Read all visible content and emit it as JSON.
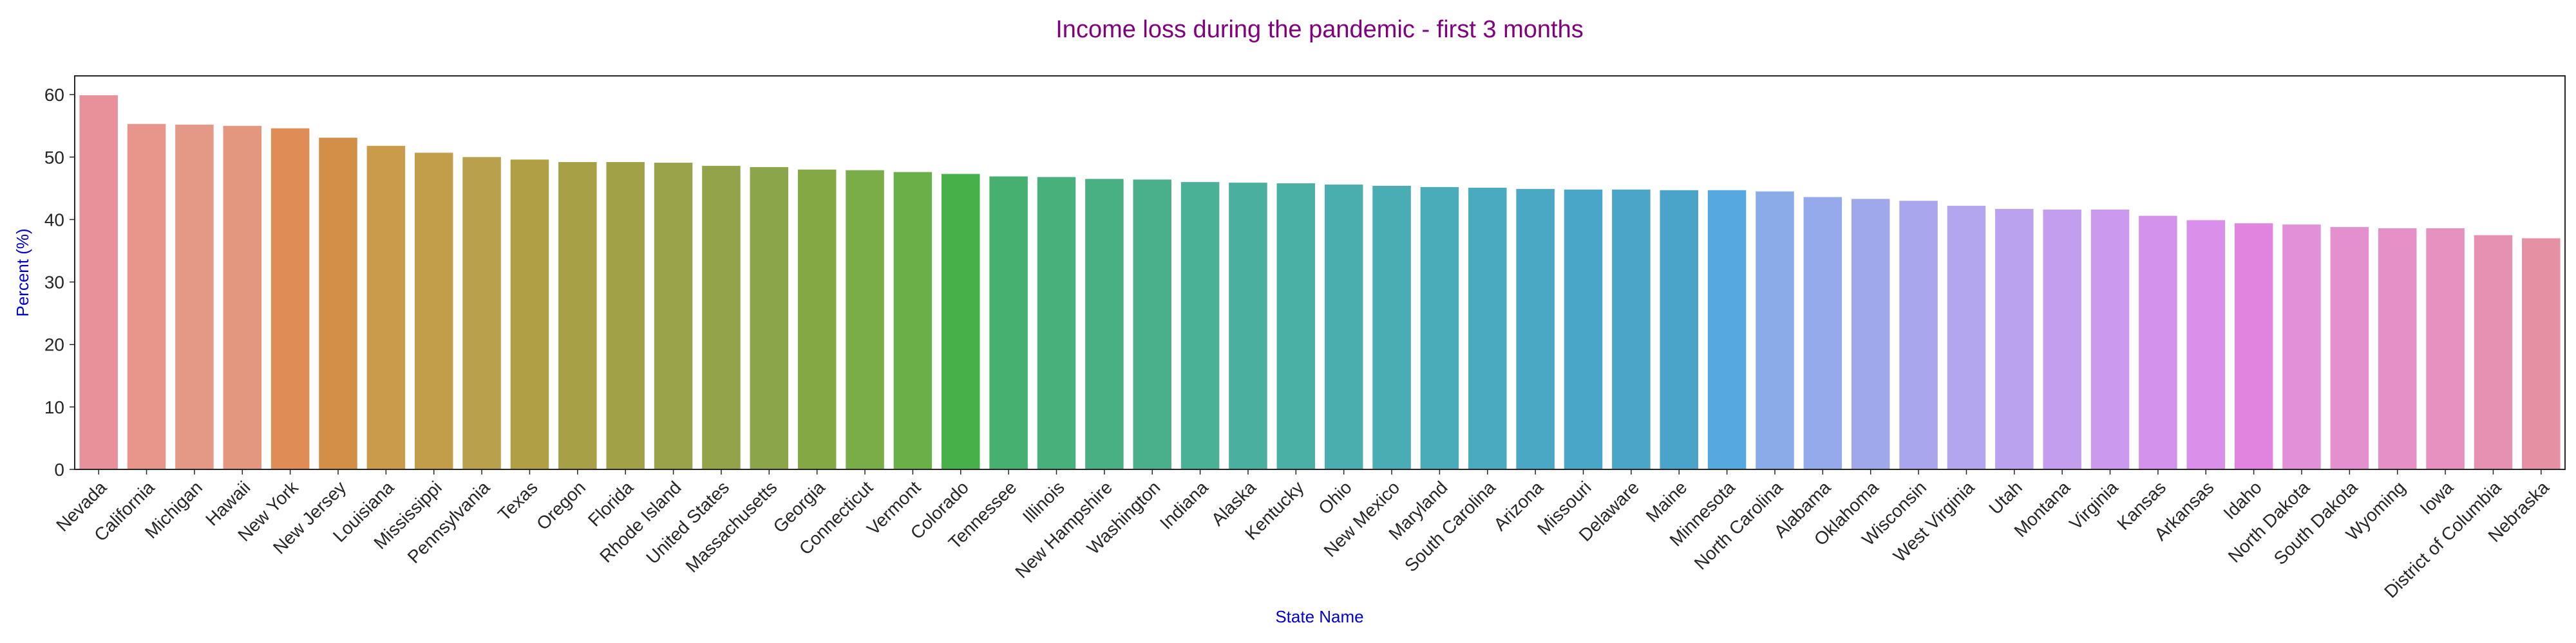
{
  "chart_data": {
    "type": "bar",
    "title": "Income loss during the pandemic - first 3 months",
    "xlabel": "State Name",
    "ylabel": "Percent (%)",
    "ylim": [
      0,
      63
    ],
    "yticks": [
      0,
      10,
      20,
      30,
      40,
      50,
      60
    ],
    "grid": false,
    "legend": "none",
    "title_color": "#800080",
    "label_color": "#0000cd",
    "categories": [
      "Nevada",
      "California",
      "Michigan",
      "Hawaii",
      "New York",
      "New Jersey",
      "Louisiana",
      "Mississippi",
      "Pennsylvania",
      "Texas",
      "Oregon",
      "Florida",
      "Rhode Island",
      "United States",
      "Massachusetts",
      "Georgia",
      "Connecticut",
      "Vermont",
      "Colorado",
      "Tennessee",
      "Illinois",
      "New Hampshire",
      "Washington",
      "Indiana",
      "Alaska",
      "Kentucky",
      "Ohio",
      "New Mexico",
      "Maryland",
      "South Carolina",
      "Arizona",
      "Missouri",
      "Delaware",
      "Maine",
      "Minnesota",
      "North Carolina",
      "Alabama",
      "Oklahoma",
      "Wisconsin",
      "West Virginia",
      "Utah",
      "Montana",
      "Virginia",
      "Kansas",
      "Arkansas",
      "Idaho",
      "North Dakota",
      "South Dakota",
      "Wyoming",
      "Iowa",
      "District of Columbia",
      "Nebraska"
    ],
    "values": [
      59.9,
      55.3,
      55.2,
      55.0,
      54.6,
      53.1,
      51.8,
      50.7,
      50.0,
      49.6,
      49.2,
      49.2,
      49.1,
      48.6,
      48.4,
      48.0,
      47.9,
      47.6,
      47.3,
      46.9,
      46.8,
      46.5,
      46.4,
      46.0,
      45.9,
      45.8,
      45.6,
      45.4,
      45.2,
      45.1,
      44.9,
      44.8,
      44.8,
      44.7,
      44.7,
      44.5,
      43.6,
      43.3,
      43.0,
      42.2,
      41.7,
      41.6,
      41.6,
      40.6,
      39.9,
      39.4,
      39.2,
      38.8,
      38.6,
      38.6,
      37.5,
      37.0
    ],
    "colors": [
      "#e8919b",
      "#e8968c",
      "#e49886",
      "#e3977f",
      "#df8c56",
      "#d38f48",
      "#c99b4a",
      "#c29e4a",
      "#b8a04c",
      "#b19f45",
      "#a7a046",
      "#a1a148",
      "#9aa24a",
      "#93a34a",
      "#8ba64a",
      "#84a844",
      "#7aac48",
      "#6aaf48",
      "#48b048",
      "#45b070",
      "#48b07a",
      "#48b082",
      "#4ab08c",
      "#4ab096",
      "#4aaf9e",
      "#4aafa5",
      "#4aaeae",
      "#4aadb4",
      "#4aacb8",
      "#4aaabf",
      "#4aa8c5",
      "#4aa6c8",
      "#4aa5c8",
      "#4aa4ca",
      "#55a8e0",
      "#8aaae8",
      "#95aaea",
      "#a0a8ec",
      "#aaa6ee",
      "#b3a5ee",
      "#bba2ee",
      "#c39eee",
      "#cb9aee",
      "#d393ec",
      "#da90ea",
      "#e084e0",
      "#e290d8",
      "#e490cf",
      "#e690c8",
      "#e691c0",
      "#e690b2",
      "#e690a4"
    ]
  }
}
